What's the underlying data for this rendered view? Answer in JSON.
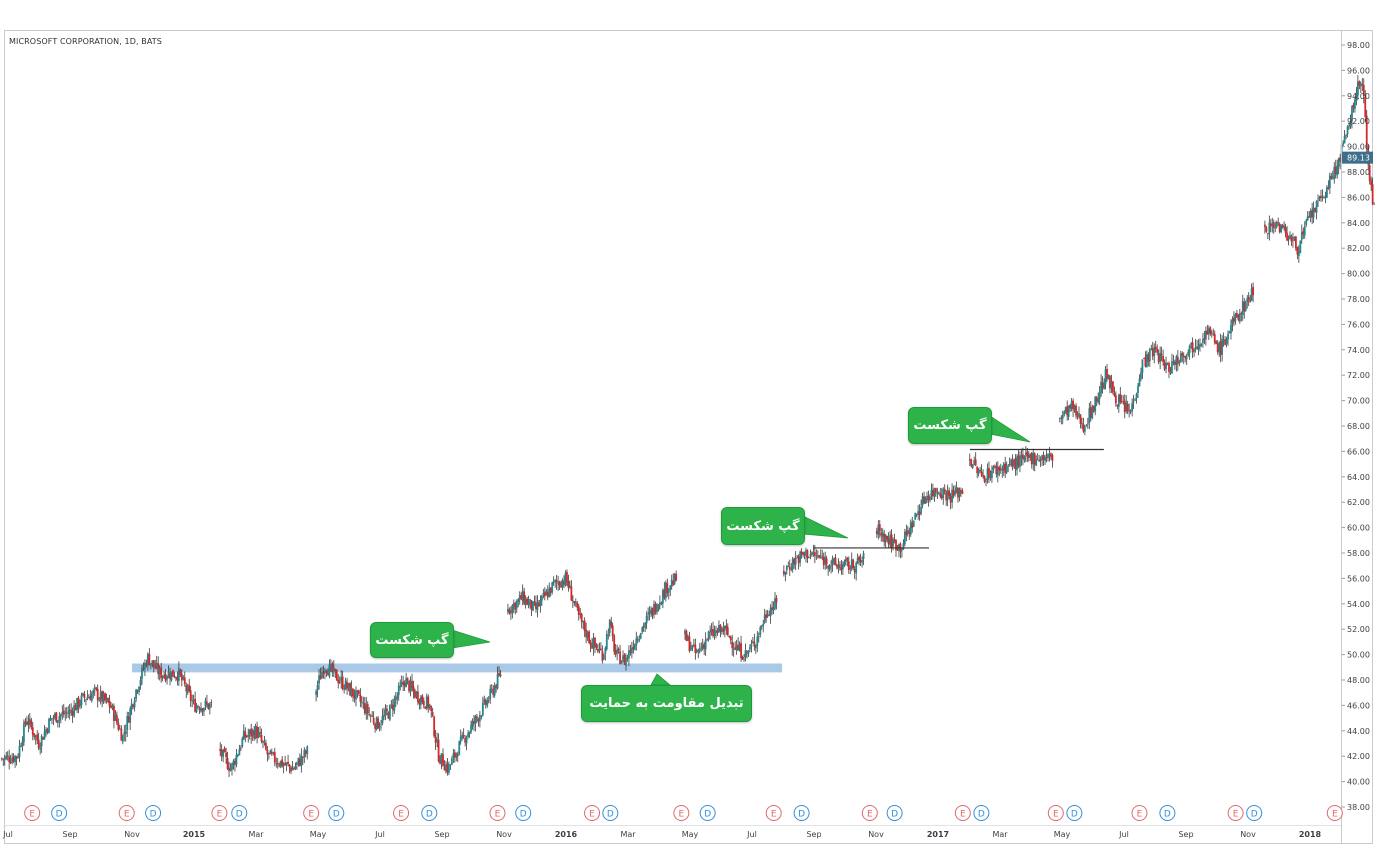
{
  "chart_data": {
    "type": "candlestick",
    "title": "MICROSOFT CORPORATION, 1D, BATS",
    "ylim": [
      37,
      99
    ],
    "y_ticks": [
      "98.00",
      "96.00",
      "94.00",
      "92.00",
      "90.00",
      "88.00",
      "86.00",
      "84.00",
      "82.00",
      "80.00",
      "78.00",
      "76.00",
      "74.00",
      "72.00",
      "70.00",
      "68.00",
      "66.00",
      "64.00",
      "62.00",
      "60.00",
      "58.00",
      "56.00",
      "54.00",
      "52.00",
      "50.00",
      "48.00",
      "46.00",
      "44.00",
      "42.00",
      "40.00",
      "38.00"
    ],
    "last_price": "89.13",
    "x_ticks": [
      {
        "label": "Jul",
        "t": 0.0,
        "bold": false
      },
      {
        "label": "Sep",
        "t": 2.0,
        "bold": false
      },
      {
        "label": "Nov",
        "t": 4.0,
        "bold": false
      },
      {
        "label": "2015",
        "t": 6.0,
        "bold": true
      },
      {
        "label": "Mar",
        "t": 8.0,
        "bold": false
      },
      {
        "label": "May",
        "t": 10.0,
        "bold": false
      },
      {
        "label": "Jul",
        "t": 12.0,
        "bold": false
      },
      {
        "label": "Sep",
        "t": 14.0,
        "bold": false
      },
      {
        "label": "Nov",
        "t": 16.0,
        "bold": false
      },
      {
        "label": "2016",
        "t": 18.0,
        "bold": true
      },
      {
        "label": "Mar",
        "t": 20.0,
        "bold": false
      },
      {
        "label": "May",
        "t": 22.0,
        "bold": false
      },
      {
        "label": "Jul",
        "t": 24.0,
        "bold": false
      },
      {
        "label": "Sep",
        "t": 26.0,
        "bold": false
      },
      {
        "label": "Nov",
        "t": 28.0,
        "bold": false
      },
      {
        "label": "2017",
        "t": 30.0,
        "bold": true
      },
      {
        "label": "Mar",
        "t": 32.0,
        "bold": false
      },
      {
        "label": "May",
        "t": 34.0,
        "bold": false
      },
      {
        "label": "Jul",
        "t": 36.0,
        "bold": false
      },
      {
        "label": "Sep",
        "t": 38.0,
        "bold": false
      },
      {
        "label": "Nov",
        "t": 40.0,
        "bold": false
      },
      {
        "label": "2018",
        "t": 42.0,
        "bold": true
      }
    ],
    "price_path": [
      [
        -0.2,
        41.8
      ],
      [
        0.3,
        42.0
      ],
      [
        0.6,
        45.0
      ],
      [
        1.0,
        43.0
      ],
      [
        1.4,
        45.0
      ],
      [
        2.0,
        45.5
      ],
      [
        2.4,
        46.5
      ],
      [
        2.8,
        47.0
      ],
      [
        3.3,
        46.0
      ],
      [
        3.7,
        43.5
      ],
      [
        4.1,
        47.0
      ],
      [
        4.5,
        49.8
      ],
      [
        4.9,
        48.5
      ],
      [
        5.5,
        48.5
      ],
      [
        6.0,
        46.0
      ],
      [
        6.6,
        46.0
      ],
      [
        6.8,
        42.5
      ],
      [
        7.2,
        41.0
      ],
      [
        7.6,
        43.5
      ],
      [
        8.0,
        44.0
      ],
      [
        8.4,
        42.0
      ],
      [
        8.8,
        41.5
      ],
      [
        9.2,
        41.0
      ],
      [
        9.7,
        42.5
      ],
      [
        9.9,
        47.0
      ],
      [
        10.2,
        49.2
      ],
      [
        10.7,
        48.0
      ],
      [
        11.3,
        46.5
      ],
      [
        11.9,
        44.5
      ],
      [
        12.3,
        45.5
      ],
      [
        12.8,
        48.0
      ],
      [
        13.1,
        47.0
      ],
      [
        13.6,
        46.0
      ],
      [
        13.9,
        42.0
      ],
      [
        14.2,
        41.0
      ],
      [
        14.6,
        43.0
      ],
      [
        15.0,
        44.5
      ],
      [
        15.5,
        46.5
      ],
      [
        15.9,
        48.5
      ],
      [
        16.1,
        53.5
      ],
      [
        16.6,
        54.5
      ],
      [
        17.0,
        53.5
      ],
      [
        17.6,
        55.5
      ],
      [
        18.0,
        56.0
      ],
      [
        18.4,
        53.0
      ],
      [
        18.8,
        51.0
      ],
      [
        19.2,
        50.0
      ],
      [
        19.4,
        52.5
      ],
      [
        19.6,
        50.0
      ],
      [
        19.9,
        49.5
      ],
      [
        20.3,
        51.5
      ],
      [
        20.8,
        53.5
      ],
      [
        21.3,
        55.5
      ],
      [
        21.6,
        56.0
      ],
      [
        21.8,
        51.5
      ],
      [
        22.2,
        50.0
      ],
      [
        22.6,
        51.5
      ],
      [
        23.1,
        52.0
      ],
      [
        23.5,
        50.5
      ],
      [
        23.8,
        50.0
      ],
      [
        24.1,
        51.0
      ],
      [
        24.5,
        53.5
      ],
      [
        24.8,
        54.0
      ],
      [
        25.0,
        56.5
      ],
      [
        25.4,
        57.5
      ],
      [
        25.8,
        58.0
      ],
      [
        26.3,
        57.5
      ],
      [
        26.7,
        57.0
      ],
      [
        27.3,
        57.0
      ],
      [
        27.6,
        57.5
      ],
      [
        28.0,
        60.0
      ],
      [
        28.4,
        59.0
      ],
      [
        28.8,
        58.5
      ],
      [
        29.2,
        60.5
      ],
      [
        29.6,
        62.5
      ],
      [
        30.0,
        63.0
      ],
      [
        30.4,
        62.5
      ],
      [
        30.8,
        63.0
      ],
      [
        31.0,
        65.5
      ],
      [
        31.4,
        64.0
      ],
      [
        31.8,
        64.5
      ],
      [
        32.4,
        65.0
      ],
      [
        33.0,
        65.5
      ],
      [
        33.7,
        65.5
      ],
      [
        33.9,
        68.5
      ],
      [
        34.3,
        69.5
      ],
      [
        34.7,
        68.0
      ],
      [
        35.1,
        70.0
      ],
      [
        35.4,
        72.0
      ],
      [
        35.8,
        70.0
      ],
      [
        36.2,
        69.0
      ],
      [
        36.6,
        73.0
      ],
      [
        37.0,
        74.0
      ],
      [
        37.4,
        72.5
      ],
      [
        37.8,
        73.5
      ],
      [
        38.3,
        74.5
      ],
      [
        38.7,
        75.5
      ],
      [
        39.1,
        74.0
      ],
      [
        39.5,
        76.0
      ],
      [
        40.0,
        78.0
      ],
      [
        40.2,
        78.8
      ],
      [
        40.5,
        83.5
      ],
      [
        40.9,
        84.0
      ],
      [
        41.3,
        83.0
      ],
      [
        41.6,
        82.0
      ],
      [
        42.0,
        84.5
      ],
      [
        42.4,
        86.0
      ],
      [
        42.8,
        88.0
      ],
      [
        43.2,
        91.0
      ],
      [
        43.5,
        94.5
      ],
      [
        43.7,
        95.0
      ],
      [
        43.9,
        88.0
      ],
      [
        44.1,
        84.5
      ]
    ],
    "gap_segments": [
      [
        -0.2,
        6.6
      ],
      [
        6.8,
        9.7
      ],
      [
        9.9,
        15.9
      ],
      [
        16.1,
        21.6
      ],
      [
        21.8,
        24.8
      ],
      [
        25.0,
        27.6
      ],
      [
        28.0,
        30.8
      ],
      [
        31.0,
        33.7
      ],
      [
        33.9,
        40.2
      ],
      [
        40.5,
        44.1
      ]
    ],
    "events": [
      {
        "label": "E",
        "t": 0.78,
        "type": "earnings"
      },
      {
        "label": "D",
        "t": 1.65,
        "type": "dividend"
      },
      {
        "label": "E",
        "t": 3.83,
        "type": "earnings"
      },
      {
        "label": "D",
        "t": 4.68,
        "type": "dividend"
      },
      {
        "label": "E",
        "t": 6.82,
        "type": "earnings"
      },
      {
        "label": "D",
        "t": 7.46,
        "type": "dividend"
      },
      {
        "label": "E",
        "t": 9.78,
        "type": "earnings"
      },
      {
        "label": "D",
        "t": 10.59,
        "type": "dividend"
      },
      {
        "label": "E",
        "t": 12.68,
        "type": "earnings"
      },
      {
        "label": "D",
        "t": 13.59,
        "type": "dividend"
      },
      {
        "label": "E",
        "t": 15.79,
        "type": "earnings"
      },
      {
        "label": "D",
        "t": 16.62,
        "type": "dividend"
      },
      {
        "label": "E",
        "t": 18.84,
        "type": "earnings"
      },
      {
        "label": "D",
        "t": 19.43,
        "type": "dividend"
      },
      {
        "label": "E",
        "t": 21.72,
        "type": "earnings"
      },
      {
        "label": "D",
        "t": 22.57,
        "type": "dividend"
      },
      {
        "label": "E",
        "t": 24.7,
        "type": "earnings"
      },
      {
        "label": "D",
        "t": 25.6,
        "type": "dividend"
      },
      {
        "label": "E",
        "t": 27.8,
        "type": "earnings"
      },
      {
        "label": "D",
        "t": 28.6,
        "type": "dividend"
      },
      {
        "label": "E",
        "t": 30.8,
        "type": "earnings"
      },
      {
        "label": "D",
        "t": 31.4,
        "type": "dividend"
      },
      {
        "label": "E",
        "t": 33.8,
        "type": "earnings"
      },
      {
        "label": "D",
        "t": 34.4,
        "type": "dividend"
      },
      {
        "label": "E",
        "t": 36.5,
        "type": "earnings"
      },
      {
        "label": "D",
        "t": 37.4,
        "type": "dividend"
      },
      {
        "label": "E",
        "t": 39.6,
        "type": "earnings"
      },
      {
        "label": "D",
        "t": 40.2,
        "type": "dividend"
      },
      {
        "label": "E",
        "t": 42.8,
        "type": "earnings"
      }
    ],
    "support_zone": {
      "t_start": 4.0,
      "t_end": 24.97,
      "price_low": 48.6,
      "price_high": 49.3
    },
    "level_lines": [
      {
        "t_start": 25.97,
        "t_end": 29.71,
        "price": 58.4
      },
      {
        "t_start": 31.03,
        "t_end": 35.35,
        "price": 66.15
      }
    ],
    "annotations": [
      {
        "text": "گپ شکست"
      },
      {
        "text": "تبدیل مقاومت به حمایت"
      },
      {
        "text": "گپ شکست"
      },
      {
        "text": "گپ شکست"
      }
    ],
    "colors": {
      "up": "#26868e",
      "down": "#d62828",
      "wick": "#3a3a3a",
      "support_zone": "#a9c9e6",
      "callout": "#2eb34a",
      "price_badge": "#3d6e8a",
      "earnings": "#e0686b",
      "dividend": "#2f8fdd",
      "level_line": "#333333"
    }
  }
}
